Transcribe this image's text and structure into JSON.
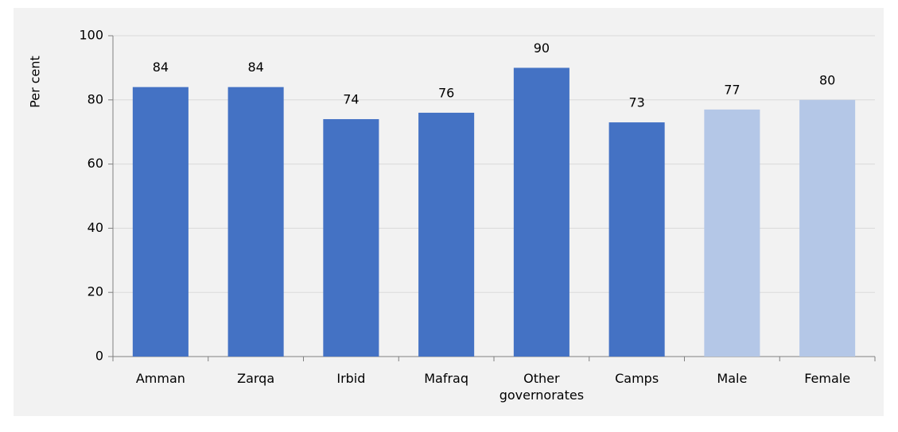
{
  "chart_data": {
    "type": "bar",
    "y_label": "Per cent",
    "categories": [
      "Amman",
      "Zarqa",
      "Irbid",
      "Mafraq",
      "Other governorates",
      "Camps",
      "Male",
      "Female"
    ],
    "values": [
      84,
      84,
      74,
      76,
      90,
      73,
      77,
      80
    ],
    "colors": [
      "#4472c4",
      "#4472c4",
      "#4472c4",
      "#4472c4",
      "#4472c4",
      "#4472c4",
      "#b4c7e7",
      "#b4c7e7"
    ],
    "ylim": [
      0,
      100
    ],
    "yticks": [
      0,
      20,
      40,
      60,
      80,
      100
    ],
    "grid": true
  }
}
